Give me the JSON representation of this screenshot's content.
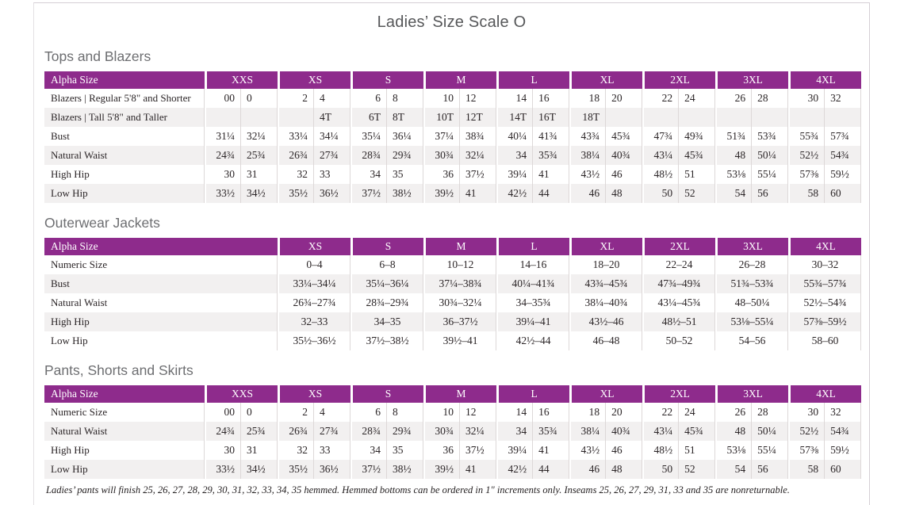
{
  "page": {
    "title": "Ladies’ Size Scale O",
    "footnote": "Ladies’ pants will finish 25, 26, 27, 28, 29, 30, 31, 32, 33, 34, 35 hemmed. Hemmed bottoms can be ordered in 1\" increments only. Inseams 25, 26, 27, 29, 31, 33 and 35 are nonreturnable."
  },
  "colors": {
    "header_bg": "#8e2b8c",
    "row_stripe": "#f2f0f0",
    "cell_border": "#ddd8d8",
    "header_text": "#ffffff",
    "heading_text": "#6d6e71",
    "title_text": "#565759"
  },
  "tables": [
    {
      "section_title": "Tops and Blazers",
      "label_header": "Alpha Size",
      "size_headers": [
        "XXS",
        "XS",
        "S",
        "M",
        "L",
        "XL",
        "2XL",
        "3XL",
        "4XL"
      ],
      "split_columns": true,
      "rows": [
        {
          "label": "Blazers | Regular 5'8\" and Shorter",
          "values": [
            "00",
            "0",
            "2",
            "4",
            "6",
            "8",
            "10",
            "12",
            "14",
            "16",
            "18",
            "20",
            "22",
            "24",
            "26",
            "28",
            "30",
            "32"
          ]
        },
        {
          "label": "Blazers | Tall 5'8\" and Taller",
          "values": [
            "",
            "",
            "",
            "4T",
            "6T",
            "8T",
            "10T",
            "12T",
            "14T",
            "16T",
            "18T",
            "",
            "",
            "",
            "",
            "",
            "",
            ""
          ]
        },
        {
          "label": "Bust",
          "values": [
            "31¼",
            "32¼",
            "33¼",
            "34¼",
            "35¼",
            "36¼",
            "37¼",
            "38¾",
            "40¼",
            "41¾",
            "43¾",
            "45¾",
            "47¾",
            "49¾",
            "51¾",
            "53¾",
            "55¾",
            "57¾"
          ]
        },
        {
          "label": "Natural Waist",
          "values": [
            "24¾",
            "25¾",
            "26¾",
            "27¾",
            "28¾",
            "29¾",
            "30¾",
            "32¼",
            "34",
            "35¾",
            "38¼",
            "40¾",
            "43¼",
            "45¾",
            "48",
            "50¼",
            "52½",
            "54¾"
          ]
        },
        {
          "label": "High Hip",
          "values": [
            "30",
            "31",
            "32",
            "33",
            "34",
            "35",
            "36",
            "37½",
            "39¼",
            "41",
            "43½",
            "46",
            "48½",
            "51",
            "53⅛",
            "55¼",
            "57⅜",
            "59½"
          ]
        },
        {
          "label": "Low Hip",
          "values": [
            "33½",
            "34½",
            "35½",
            "36½",
            "37½",
            "38½",
            "39½",
            "41",
            "42½",
            "44",
            "46",
            "48",
            "50",
            "52",
            "54",
            "56",
            "58",
            "60"
          ]
        }
      ]
    },
    {
      "section_title": "Outerwear Jackets",
      "label_header": "Alpha Size",
      "size_headers": [
        "XS",
        "S",
        "M",
        "L",
        "XL",
        "2XL",
        "3XL",
        "4XL"
      ],
      "split_columns": false,
      "rows": [
        {
          "label": "Numeric Size",
          "values": [
            "0–4",
            "6–8",
            "10–12",
            "14–16",
            "18–20",
            "22–24",
            "26–28",
            "30–32"
          ]
        },
        {
          "label": "Bust",
          "values": [
            "33¼–34¼",
            "35¼–36¼",
            "37¼–38¾",
            "40¼–41¾",
            "43¾–45¾",
            "47¾–49¾",
            "51¾–53¾",
            "55¾–57¾"
          ]
        },
        {
          "label": "Natural Waist",
          "values": [
            "26¾–27¾",
            "28¾–29¾",
            "30¾–32¼",
            "34–35¾",
            "38¼–40¾",
            "43¼–45¾",
            "48–50¼",
            "52½–54¾"
          ]
        },
        {
          "label": "High Hip",
          "values": [
            "32–33",
            "34–35",
            "36–37½",
            "39¼–41",
            "43½–46",
            "48½–51",
            "53⅛–55¼",
            "57⅜–59½"
          ]
        },
        {
          "label": "Low Hip",
          "values": [
            "35½–36½",
            "37½–38½",
            "39½–41",
            "42½–44",
            "46–48",
            "50–52",
            "54–56",
            "58–60"
          ]
        }
      ]
    },
    {
      "section_title": "Pants, Shorts and Skirts",
      "label_header": "Alpha Size",
      "size_headers": [
        "XXS",
        "XS",
        "S",
        "M",
        "L",
        "XL",
        "2XL",
        "3XL",
        "4XL"
      ],
      "split_columns": true,
      "rows": [
        {
          "label": "Numeric Size",
          "values": [
            "00",
            "0",
            "2",
            "4",
            "6",
            "8",
            "10",
            "12",
            "14",
            "16",
            "18",
            "20",
            "22",
            "24",
            "26",
            "28",
            "30",
            "32"
          ]
        },
        {
          "label": "Natural Waist",
          "values": [
            "24¾",
            "25¾",
            "26¾",
            "27¾",
            "28¾",
            "29¾",
            "30¾",
            "32¼",
            "34",
            "35¾",
            "38¼",
            "40¾",
            "43¼",
            "45¾",
            "48",
            "50¼",
            "52½",
            "54¾"
          ]
        },
        {
          "label": "High Hip",
          "values": [
            "30",
            "31",
            "32",
            "33",
            "34",
            "35",
            "36",
            "37½",
            "39¼",
            "41",
            "43½",
            "46",
            "48½",
            "51",
            "53⅛",
            "55¼",
            "57⅜",
            "59½"
          ]
        },
        {
          "label": "Low Hip",
          "values": [
            "33½",
            "34½",
            "35½",
            "36½",
            "37½",
            "38½",
            "39½",
            "41",
            "42½",
            "44",
            "46",
            "48",
            "50",
            "52",
            "54",
            "56",
            "58",
            "60"
          ]
        }
      ]
    }
  ]
}
